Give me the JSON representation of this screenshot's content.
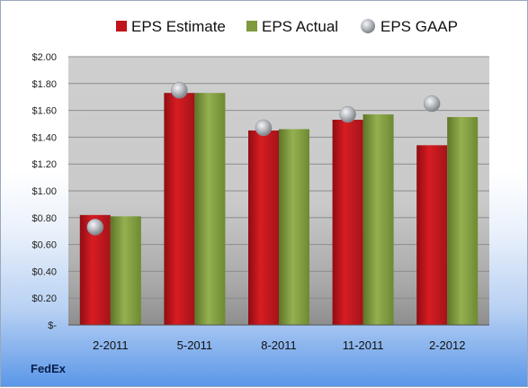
{
  "brand": "FedEx",
  "chart_data": {
    "type": "bar",
    "categories": [
      "2-2011",
      "5-2011",
      "8-2011",
      "11-2011",
      "2-2012"
    ],
    "series": [
      {
        "name": "EPS Estimate",
        "kind": "bar",
        "color": "#c0141b",
        "values": [
          0.82,
          1.73,
          1.45,
          1.53,
          1.34
        ]
      },
      {
        "name": "EPS Actual",
        "kind": "bar",
        "color": "#7f9a3d",
        "values": [
          0.81,
          1.73,
          1.46,
          1.57,
          1.55
        ]
      },
      {
        "name": "EPS GAAP",
        "kind": "marker",
        "color": "#a9adb3",
        "values": [
          0.73,
          1.75,
          1.47,
          1.57,
          1.65
        ]
      }
    ],
    "y_ticks": [
      "$2.00",
      "$1.80",
      "$1.60",
      "$1.40",
      "$1.20",
      "$1.00",
      "$0.80",
      "$0.60",
      "$0.40",
      "$0.20",
      "$-"
    ],
    "ylim": [
      0,
      2.0
    ],
    "grid": true,
    "legend_position": "top"
  }
}
